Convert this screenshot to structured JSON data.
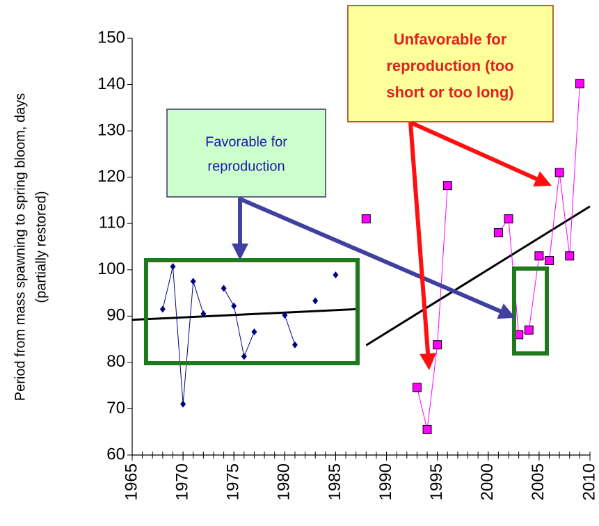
{
  "chart_data": {
    "type": "line",
    "y_label": [
      "Period from mass spawning to spring bloom, days",
      "(partially restored)"
    ],
    "xlim": [
      1965,
      2010
    ],
    "xticks": [
      1965,
      1970,
      1975,
      1980,
      1985,
      1990,
      1995,
      2000,
      2005,
      2010
    ],
    "ylim": [
      60,
      150
    ],
    "yticks": [
      60,
      70,
      80,
      90,
      100,
      110,
      120,
      130,
      140,
      150
    ],
    "grid": false,
    "series": [
      {
        "color": "#000080",
        "marker": "diamond",
        "x": [
          1968,
          1969,
          1970,
          1971,
          1972,
          1973,
          1974,
          1975,
          1976,
          1977,
          1978,
          1979,
          1980,
          1981,
          1982,
          1983,
          1984,
          1985
        ],
        "values": [
          91.5,
          100.7,
          71,
          97.5,
          90.5,
          null,
          96,
          92.2,
          81.3,
          86.6,
          null,
          null,
          90.2,
          83.8,
          null,
          93.3,
          null,
          98.9
        ]
      },
      {
        "color": "#ff00ff",
        "marker": "square",
        "x": [
          1988,
          1989,
          1990,
          1991,
          1992,
          1993,
          1994,
          1995,
          1996,
          1997,
          1998,
          1999,
          2000,
          2001,
          2002,
          2003,
          2004,
          2005,
          2006,
          2007,
          2008,
          2009
        ],
        "values": [
          111,
          null,
          null,
          null,
          null,
          74.6,
          65.5,
          83.8,
          118.2,
          null,
          null,
          null,
          null,
          108,
          111,
          86,
          87,
          103,
          102,
          121,
          103,
          140.2
        ]
      }
    ],
    "trend_lines": [
      {
        "color": "#000000",
        "x": [
          1965,
          1987
        ],
        "values": [
          89.2,
          91.5
        ]
      },
      {
        "color": "#000000",
        "x": [
          1988,
          2010
        ],
        "values": [
          83.7,
          113.7
        ]
      }
    ],
    "annotations": [
      {
        "lines": [
          "Favorable for",
          "reproduction"
        ]
      },
      {
        "lines": [
          "Unfavorable for",
          "reproduction (too",
          "short or too long)"
        ]
      }
    ]
  }
}
